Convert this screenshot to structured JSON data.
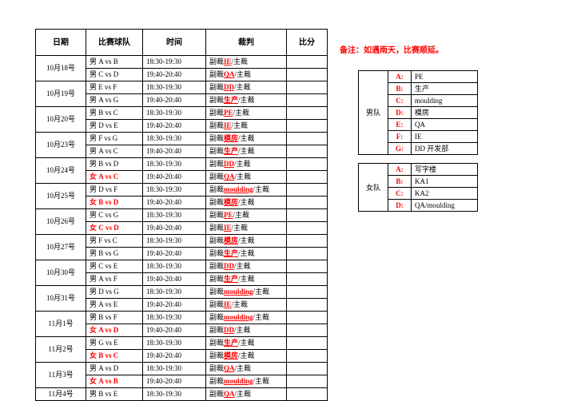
{
  "headers": {
    "date": "日期",
    "teams": "比赛球队",
    "time": "时间",
    "referee": "裁判",
    "score": "比分"
  },
  "note": "备注：如遇雨天，比赛顺延。",
  "ref_prefix": "副裁",
  "ref_suffix": "/主裁",
  "schedule": [
    {
      "date": "10月18号",
      "rows": [
        {
          "t": "男 A vs B",
          "time": "18:30-19:30",
          "m": "IE",
          "red": false
        },
        {
          "t": "男 C vs D",
          "time": "19:40-20:40",
          "m": "QA",
          "red": false
        }
      ]
    },
    {
      "date": "10月19号",
      "rows": [
        {
          "t": "男 E vs F",
          "time": "18:30-19:30",
          "m": "DD",
          "red": false
        },
        {
          "t": "男 A vs G",
          "time": "19:40-20:40",
          "m": "生产",
          "red": false
        }
      ]
    },
    {
      "date": "10月20号",
      "rows": [
        {
          "t": "男 B vs C",
          "time": "18:30-19:30",
          "m": "PE",
          "red": false
        },
        {
          "t": "男 D vs E",
          "time": "19:40-20:40",
          "m": "IE",
          "red": false
        }
      ]
    },
    {
      "date": "10月23号",
      "rows": [
        {
          "t": "男 F vs G",
          "time": "18:30-19:30",
          "m": "模房",
          "red": false
        },
        {
          "t": "男 A vs C",
          "time": "19:40-20:40",
          "m": "生产",
          "red": false
        }
      ]
    },
    {
      "date": "10月24号",
      "rows": [
        {
          "t": "男 B vs D",
          "time": "18:30-19:30",
          "m": "DD",
          "red": false
        },
        {
          "t": "女 A vs C",
          "time": "19:40-20:40",
          "m": "QA",
          "red": true
        }
      ]
    },
    {
      "date": "10月25号",
      "rows": [
        {
          "t": "男 D vs F",
          "time": "18:30-19:30",
          "m": "moulding",
          "red": false
        },
        {
          "t": "女 B vs D",
          "time": "19:40-20:40",
          "m": "模房",
          "red": true
        }
      ]
    },
    {
      "date": "10月26号",
      "rows": [
        {
          "t": "男 C vs G",
          "time": "18:30-19:30",
          "m": "PE",
          "red": false
        },
        {
          "t": "女 C vs D",
          "time": "19:40-20:40",
          "m": "IE",
          "red": true
        }
      ]
    },
    {
      "date": "10月27号",
      "rows": [
        {
          "t": "男 F vs C",
          "time": "18:30-19:30",
          "m": "模房",
          "red": false
        },
        {
          "t": "男 B vs G",
          "time": "19:40-20:40",
          "m": "生产",
          "red": false
        }
      ]
    },
    {
      "date": "10月30号",
      "rows": [
        {
          "t": "男 C vs E",
          "time": "18:30-19:30",
          "m": "DD",
          "red": false
        },
        {
          "t": "男 A vs F",
          "time": "19:40-20:40",
          "m": "生产",
          "red": false
        }
      ]
    },
    {
      "date": "10月31号",
      "rows": [
        {
          "t": "男 D vs G",
          "time": "18:30-19:30",
          "m": "moulding",
          "red": false
        },
        {
          "t": "男 A vs E",
          "time": "19:40-20:40",
          "m": "IE",
          "red": false
        }
      ]
    },
    {
      "date": "11月1号",
      "rows": [
        {
          "t": "男 B vs F",
          "time": "18:30-19:30",
          "m": "moulding",
          "red": false
        },
        {
          "t": "女 A vs D",
          "time": "19:40-20:40",
          "m": "DD",
          "red": true
        }
      ]
    },
    {
      "date": "11月2号",
      "rows": [
        {
          "t": "男 G vs E",
          "time": "18:30-19:30",
          "m": "生产",
          "red": false
        },
        {
          "t": "女 B vs C",
          "time": "19:40-20:40",
          "m": "模房",
          "red": true
        }
      ]
    },
    {
      "date": "11月3号",
      "rows": [
        {
          "t": "男 A vs D",
          "time": "18:30-19:30",
          "m": "QA",
          "red": false
        },
        {
          "t": "女 A vs B",
          "time": "19:40-20:40",
          "m": "moulding",
          "red": true
        }
      ]
    },
    {
      "date": "11月4号",
      "rows": [
        {
          "t": "男 B vs E",
          "time": "18:30-19:30",
          "m": "QA",
          "red": false
        }
      ]
    }
  ],
  "male": {
    "label": "男队",
    "rows": [
      [
        "A:",
        "PE"
      ],
      [
        "B:",
        "生产"
      ],
      [
        "C:",
        "moulding"
      ],
      [
        "D:",
        "模房"
      ],
      [
        "E:",
        "QA"
      ],
      [
        "F:",
        "IE"
      ],
      [
        "G:",
        "DD 开发部"
      ]
    ]
  },
  "female": {
    "label": "女队",
    "rows": [
      [
        "A:",
        "写字楼"
      ],
      [
        "B:",
        "KA1"
      ],
      [
        "C:",
        "KA2"
      ],
      [
        "D:",
        "QA/moulding"
      ]
    ]
  }
}
